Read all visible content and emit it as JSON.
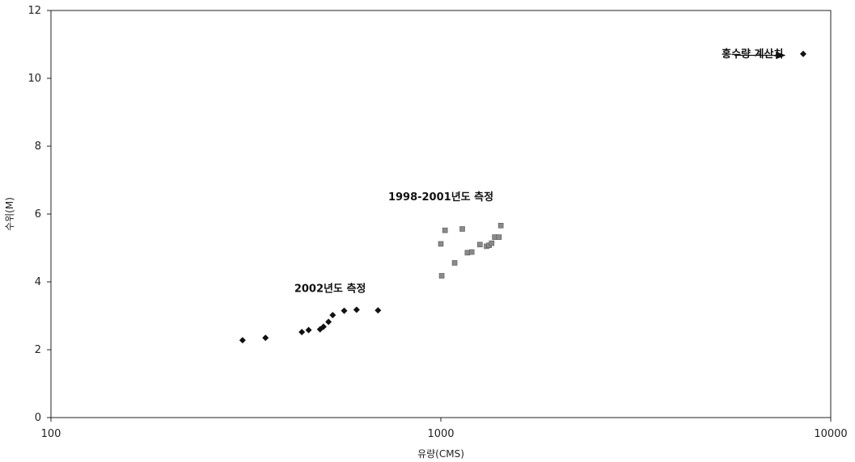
{
  "chart_data": {
    "type": "scatter",
    "title": "",
    "xlabel": "유량(CMS)",
    "ylabel": "수위(M)",
    "xscale": "log",
    "xlim": [
      100,
      10000
    ],
    "ylim": [
      0,
      12
    ],
    "xticks": [
      100,
      1000,
      10000
    ],
    "xtick_labels": [
      "100",
      "1000",
      "10000"
    ],
    "yticks": [
      0,
      2,
      4,
      6,
      8,
      10,
      12
    ],
    "ytick_labels": [
      "0",
      "2",
      "4",
      "6",
      "8",
      "10",
      "12"
    ],
    "grid": false,
    "series": [
      {
        "marker": "diamond",
        "color": "#111111",
        "points": [
          {
            "x": 310,
            "y": 2.28
          },
          {
            "x": 355,
            "y": 2.35
          },
          {
            "x": 440,
            "y": 2.52
          },
          {
            "x": 458,
            "y": 2.58
          },
          {
            "x": 490,
            "y": 2.6
          },
          {
            "x": 500,
            "y": 2.68
          },
          {
            "x": 515,
            "y": 2.82
          },
          {
            "x": 528,
            "y": 3.02
          },
          {
            "x": 565,
            "y": 3.15
          },
          {
            "x": 608,
            "y": 3.18
          },
          {
            "x": 690,
            "y": 3.16
          }
        ]
      },
      {
        "marker": "square",
        "color": "#8a8a8a",
        "points": [
          {
            "x": 1005,
            "y": 4.18
          },
          {
            "x": 1000,
            "y": 5.12
          },
          {
            "x": 1025,
            "y": 5.52
          },
          {
            "x": 1085,
            "y": 4.56
          },
          {
            "x": 1135,
            "y": 5.56
          },
          {
            "x": 1170,
            "y": 4.86
          },
          {
            "x": 1200,
            "y": 4.88
          },
          {
            "x": 1260,
            "y": 5.1
          },
          {
            "x": 1310,
            "y": 5.05
          },
          {
            "x": 1330,
            "y": 5.08
          },
          {
            "x": 1350,
            "y": 5.14
          },
          {
            "x": 1375,
            "y": 5.32
          },
          {
            "x": 1410,
            "y": 5.32
          },
          {
            "x": 1425,
            "y": 5.66
          }
        ]
      },
      {
        "marker": "diamond",
        "color": "#111111",
        "points": [
          {
            "x": 8500,
            "y": 10.72
          }
        ]
      }
    ],
    "annotations": [
      {
        "text": "2002년도 측정",
        "x": 520,
        "y": 3.8
      },
      {
        "text": "1998-2001년도 측정",
        "x": 1000,
        "y": 6.5
      },
      {
        "text": "홍수량 계산치",
        "x": 6300,
        "y": 10.72
      }
    ]
  }
}
